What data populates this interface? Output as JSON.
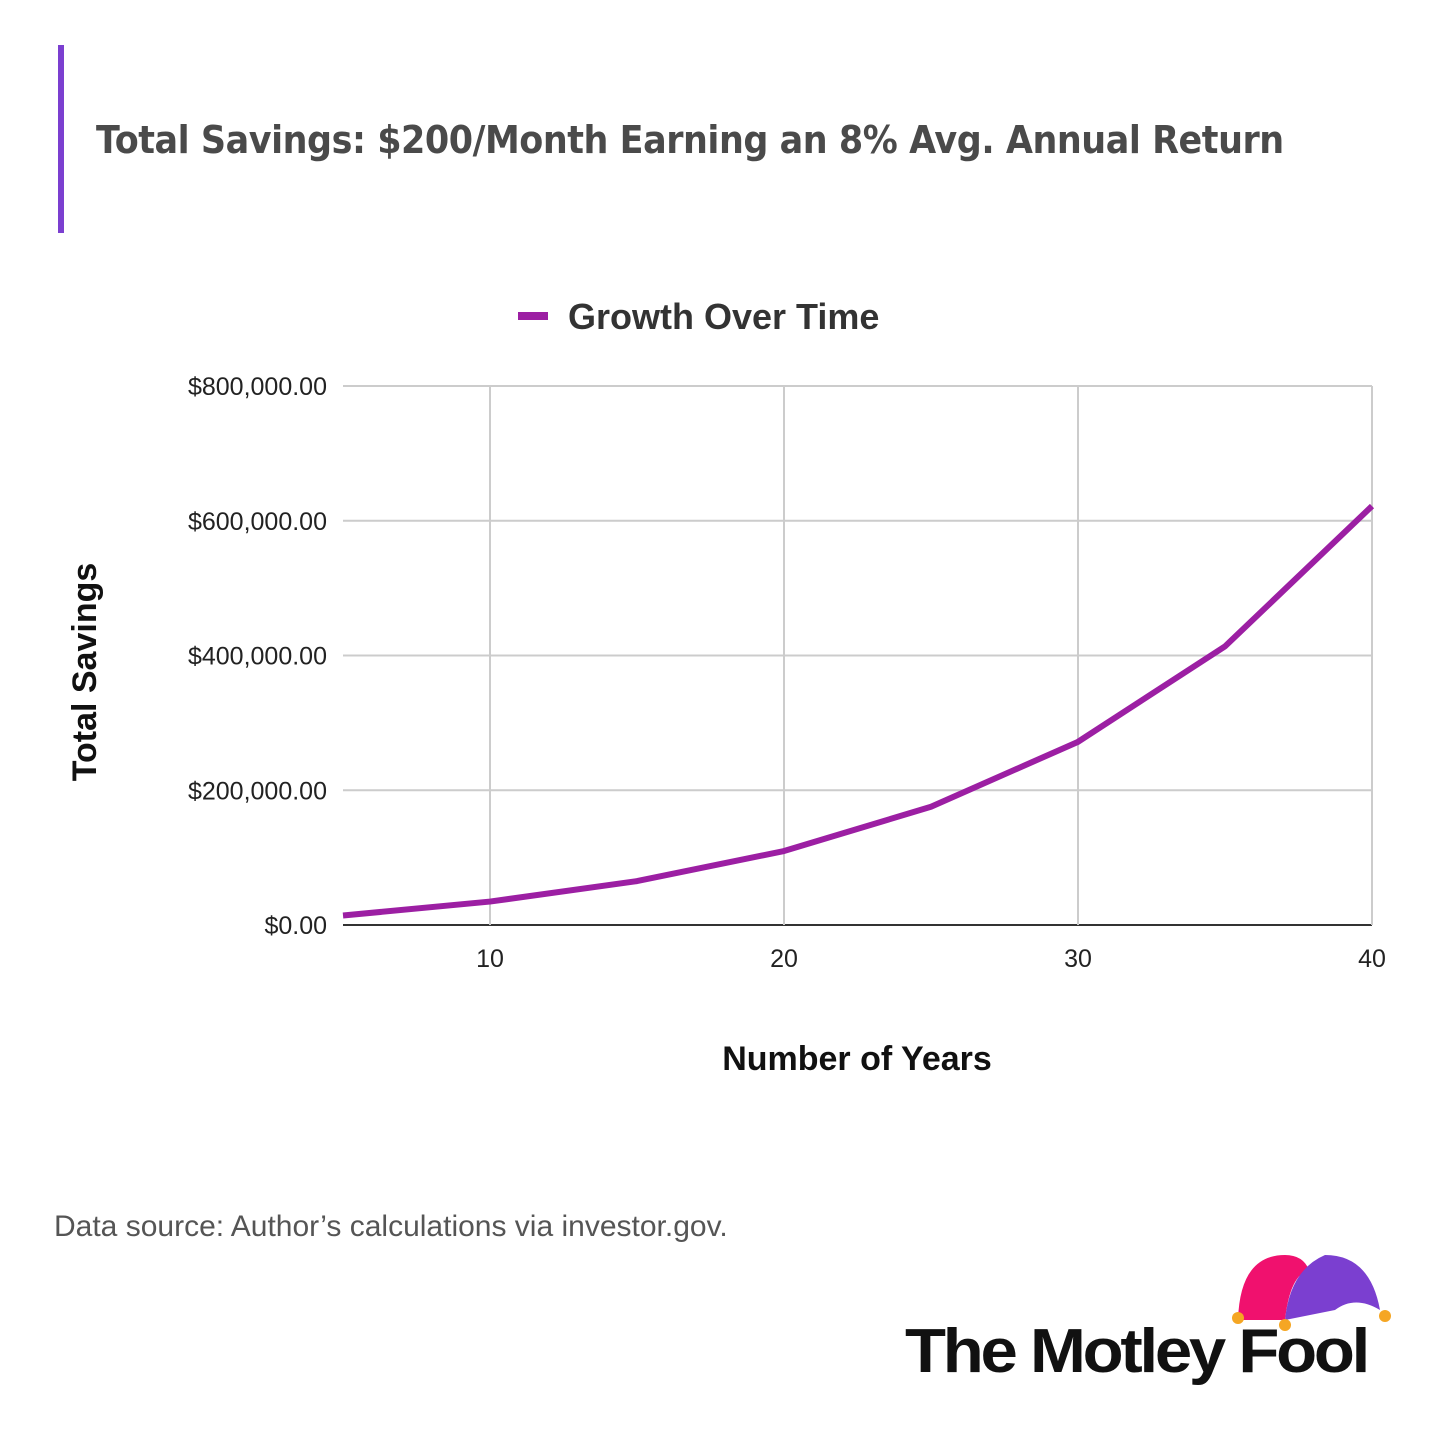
{
  "title": "Total Savings: $200/Month Earning an 8% Avg. Annual Return",
  "source": "Data source: Author’s calculations via investor.gov.",
  "logo_text": "The Motley Fool",
  "chart_data": {
    "type": "line",
    "title": "",
    "xlabel": "Number of Years",
    "ylabel": "Total Savings",
    "xlim": [
      5,
      40
    ],
    "ylim": [
      0,
      800000
    ],
    "x_ticks": [
      10,
      20,
      30,
      40
    ],
    "x_tick_labels": [
      "10",
      "20",
      "30",
      "40"
    ],
    "y_ticks": [
      0,
      200000,
      400000,
      600000,
      800000
    ],
    "y_tick_labels": [
      "$0.00",
      "$200,000.00",
      "$400,000.00",
      "$600,000.00",
      "$800,000.00"
    ],
    "grid": true,
    "legend_position": "top",
    "series": [
      {
        "name": "Growth Over Time",
        "color": "#9c1fa3",
        "x": [
          5,
          10,
          15,
          20,
          25,
          30,
          35,
          40
        ],
        "values": [
          14080,
          34767,
          65165,
          109829,
          175454,
          271880,
          413568,
          621737
        ]
      }
    ]
  },
  "colors": {
    "accent": "#7b3fd0",
    "logo_pink": "#f0116e",
    "logo_purple": "#7b3fd0",
    "logo_orange": "#f5a623"
  }
}
